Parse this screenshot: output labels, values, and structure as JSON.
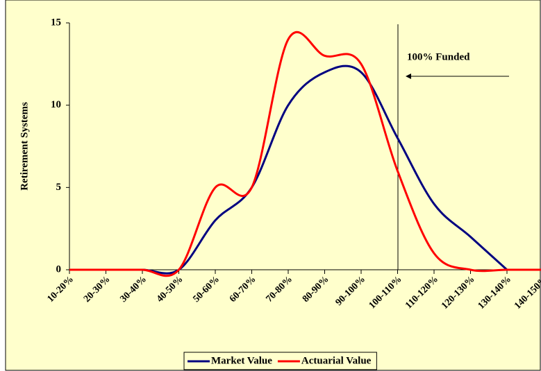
{
  "chart_data": {
    "type": "line",
    "y_label": "Retirement Systems",
    "annotation": "100% Funded",
    "categories": [
      "10-20%",
      "20-30%",
      "30-40%",
      "40-50%",
      "50-60%",
      "60-70%",
      "70-80%",
      "80-90%",
      "90-100%",
      "100-110%",
      "110-120%",
      "120-130%",
      "130-140%",
      "140-150%"
    ],
    "series": [
      {
        "name": "Market Value",
        "color": "#000080",
        "values": [
          0,
          0,
          0,
          0,
          3,
          5,
          10,
          12,
          12,
          8,
          4,
          2,
          0,
          null
        ]
      },
      {
        "name": "Actuarial Value",
        "color": "#ff0000",
        "values": [
          0,
          0,
          0,
          0,
          5,
          5,
          14,
          13,
          12.5,
          6,
          1,
          0,
          0,
          0
        ]
      }
    ],
    "ylim": [
      0,
      15
    ],
    "yticks": [
      0,
      5,
      10,
      15
    ],
    "legend": "bottom"
  }
}
